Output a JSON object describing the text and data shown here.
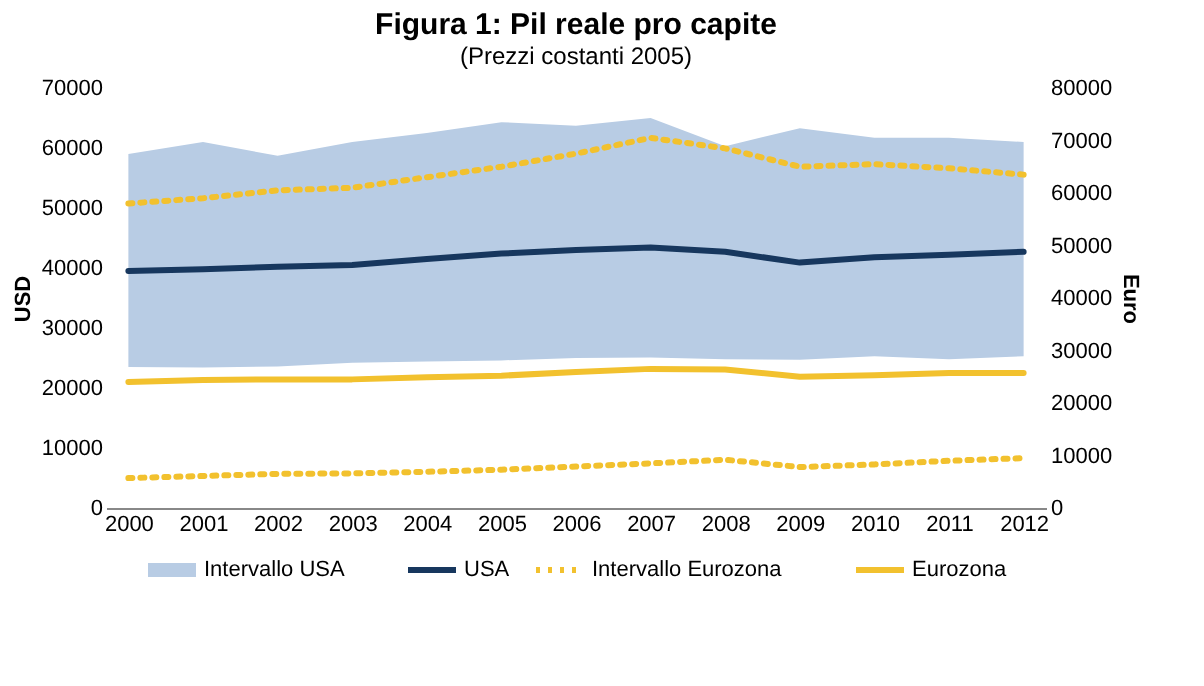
{
  "chart_data": {
    "type": "line",
    "title": "Figura 1: Pil reale pro capite",
    "subtitle": "(Prezzi costanti 2005)",
    "ylabel": "USD",
    "y2label": "Euro",
    "categories": [
      "2000",
      "2001",
      "2002",
      "2003",
      "2004",
      "2005",
      "2006",
      "2007",
      "2008",
      "2009",
      "2010",
      "2011",
      "2012"
    ],
    "ylim": [
      0,
      70000
    ],
    "yticks": [
      0,
      10000,
      20000,
      30000,
      40000,
      50000,
      60000,
      70000
    ],
    "y2lim": [
      0,
      80000
    ],
    "y2ticks": [
      0,
      10000,
      20000,
      30000,
      40000,
      50000,
      60000,
      70000,
      80000
    ],
    "grid": false,
    "legend": "bottom",
    "series": [
      {
        "name": "Intervallo USA",
        "type": "area",
        "color": "#b8cce4",
        "values": [
          null,
          null,
          null,
          null,
          null,
          null,
          null,
          null,
          null,
          null,
          null,
          null,
          null
        ],
        "lower": [
          23500,
          23400,
          23600,
          24200,
          24400,
          24600,
          25000,
          25100,
          24800,
          24700,
          25300,
          24800,
          25300
        ],
        "upper": [
          59000,
          61000,
          58700,
          61000,
          62500,
          64300,
          63700,
          65000,
          60300,
          63300,
          61700,
          61700,
          61000
        ]
      },
      {
        "name": "USA",
        "color": "#17375e",
        "line_style": "solid",
        "values": [
          39500,
          39800,
          40200,
          40500,
          41500,
          42400,
          43000,
          43400,
          42700,
          40900,
          41800,
          42200,
          42700
        ]
      },
      {
        "name": "Intervallo Eurozona",
        "color": "#f2c12e",
        "line_style": "dotted",
        "axis": "y2",
        "values": [
          58000,
          59000,
          60500,
          61000,
          63000,
          65000,
          67500,
          70500,
          68500,
          65000,
          65500,
          64700,
          63500
        ]
      },
      {
        "color": "#f2c12e",
        "line_style": "dotted",
        "axis": "y2",
        "values": [
          5700,
          6100,
          6500,
          6600,
          6900,
          7300,
          7900,
          8500,
          9200,
          7800,
          8300,
          9000,
          9500
        ]
      },
      {
        "name": "Eurozona",
        "color": "#f2c12e",
        "line_style": "solid",
        "axis": "y2",
        "values": [
          24000,
          24400,
          24500,
          24500,
          24900,
          25200,
          25900,
          26500,
          26400,
          25000,
          25300,
          25700,
          25700
        ]
      }
    ]
  }
}
